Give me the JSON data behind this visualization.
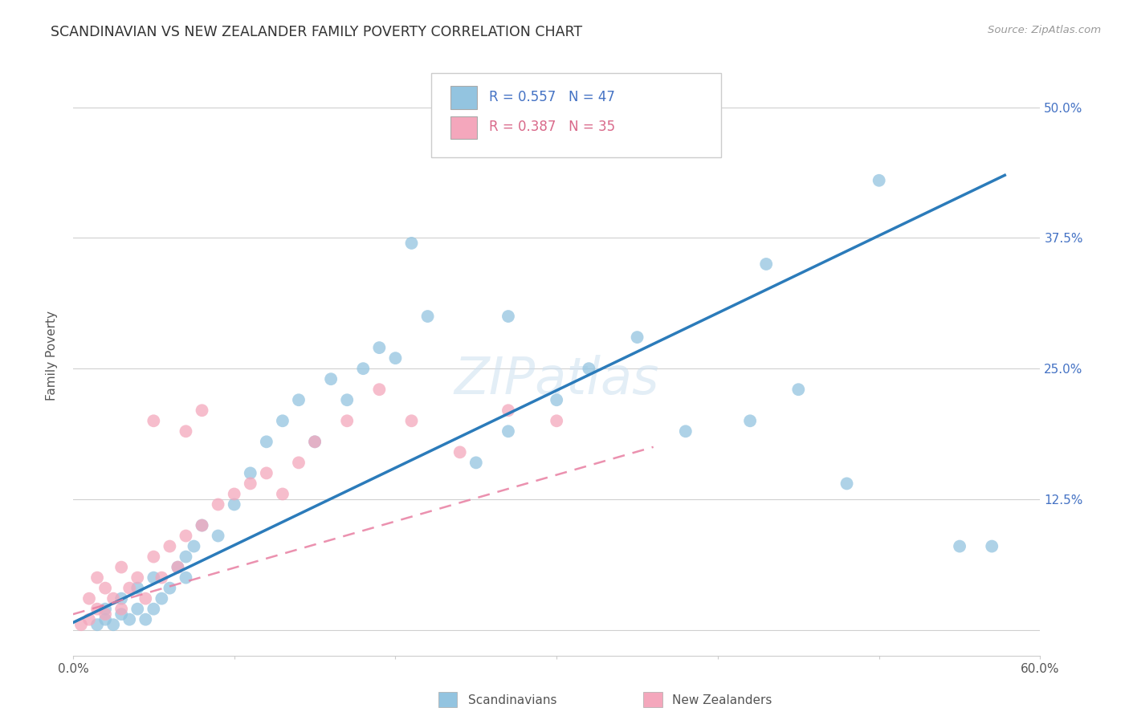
{
  "title": "SCANDINAVIAN VS NEW ZEALANDER FAMILY POVERTY CORRELATION CHART",
  "source": "Source: ZipAtlas.com",
  "ylabel": "Family Poverty",
  "xlim": [
    0.0,
    0.6
  ],
  "ylim": [
    -0.025,
    0.55
  ],
  "xtick_positions": [
    0.0,
    0.1,
    0.2,
    0.3,
    0.4,
    0.5,
    0.6
  ],
  "xticklabels": [
    "0.0%",
    "",
    "",
    "",
    "",
    "",
    "60.0%"
  ],
  "ytick_positions": [
    0.0,
    0.125,
    0.25,
    0.375,
    0.5
  ],
  "ytick_labels": [
    "",
    "12.5%",
    "25.0%",
    "37.5%",
    "50.0%"
  ],
  "blue_color": "#93c4e0",
  "pink_color": "#f4a7bc",
  "line_blue_color": "#2b7bba",
  "line_pink_color": "#e87ea1",
  "blue_line_x": [
    0.0,
    0.578
  ],
  "blue_line_y": [
    0.007,
    0.435
  ],
  "pink_line_x": [
    0.0,
    0.36
  ],
  "pink_line_y": [
    0.015,
    0.175
  ],
  "scandinavians_x": [
    0.015,
    0.02,
    0.02,
    0.025,
    0.03,
    0.03,
    0.035,
    0.04,
    0.04,
    0.045,
    0.05,
    0.05,
    0.055,
    0.06,
    0.065,
    0.07,
    0.07,
    0.075,
    0.08,
    0.09,
    0.1,
    0.11,
    0.12,
    0.13,
    0.14,
    0.15,
    0.16,
    0.17,
    0.18,
    0.19,
    0.2,
    0.22,
    0.25,
    0.27,
    0.3,
    0.32,
    0.35,
    0.38,
    0.42,
    0.45,
    0.48,
    0.5,
    0.55,
    0.57,
    0.27,
    0.21,
    0.43
  ],
  "scandinavians_y": [
    0.005,
    0.01,
    0.02,
    0.005,
    0.015,
    0.03,
    0.01,
    0.02,
    0.04,
    0.01,
    0.02,
    0.05,
    0.03,
    0.04,
    0.06,
    0.05,
    0.07,
    0.08,
    0.1,
    0.09,
    0.12,
    0.15,
    0.18,
    0.2,
    0.22,
    0.18,
    0.24,
    0.22,
    0.25,
    0.27,
    0.26,
    0.3,
    0.16,
    0.19,
    0.22,
    0.25,
    0.28,
    0.19,
    0.2,
    0.23,
    0.14,
    0.43,
    0.08,
    0.08,
    0.3,
    0.37,
    0.35
  ],
  "new_zealanders_x": [
    0.005,
    0.01,
    0.01,
    0.015,
    0.015,
    0.02,
    0.02,
    0.025,
    0.03,
    0.03,
    0.035,
    0.04,
    0.045,
    0.05,
    0.055,
    0.06,
    0.065,
    0.07,
    0.08,
    0.09,
    0.1,
    0.11,
    0.12,
    0.13,
    0.14,
    0.15,
    0.17,
    0.19,
    0.21,
    0.24,
    0.27,
    0.3,
    0.05,
    0.07,
    0.08
  ],
  "new_zealanders_y": [
    0.005,
    0.01,
    0.03,
    0.02,
    0.05,
    0.015,
    0.04,
    0.03,
    0.02,
    0.06,
    0.04,
    0.05,
    0.03,
    0.07,
    0.05,
    0.08,
    0.06,
    0.09,
    0.1,
    0.12,
    0.13,
    0.14,
    0.15,
    0.13,
    0.16,
    0.18,
    0.2,
    0.23,
    0.2,
    0.17,
    0.21,
    0.2,
    0.2,
    0.19,
    0.21
  ]
}
